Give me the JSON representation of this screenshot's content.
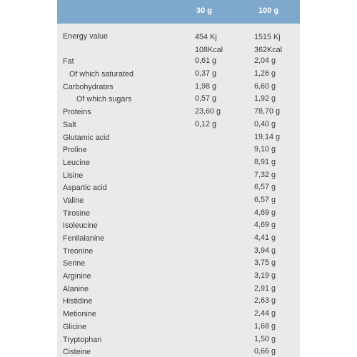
{
  "header": {
    "col1": "30 g",
    "col2": "100 g"
  },
  "rows": [
    {
      "name": "Energy value",
      "v1": "454 Kj\n108Kcal",
      "v2": "1515 Kj\n362Kcal"
    },
    {
      "name": "Fat",
      "v1": "0,61 g",
      "v2": "2,04 g"
    },
    {
      "name": "Of which saturated",
      "v1": "0,37 g",
      "v2": "1,26 g"
    },
    {
      "name": "Carbohydrates",
      "v1": "1,98 g",
      "v2": "6,60 g"
    },
    {
      "name": "Of which sugars",
      "v1": "0,57 g",
      "v2": "1,92 g"
    },
    {
      "name": "Proteins",
      "v1": "23,60 g",
      "v2": "78,70 g"
    },
    {
      "name": "Salt",
      "v1": "0,12 g",
      "v2": "0,40 g"
    },
    {
      "name": "Glutamic acid",
      "v1": "",
      "v2": "19,14 g"
    },
    {
      "name": "Proline",
      "v1": "",
      "v2": "9,10 g"
    },
    {
      "name": "Leucine",
      "v1": "",
      "v2": "8,91 g"
    },
    {
      "name": "Lisine",
      "v1": "",
      "v2": "7,32 g"
    },
    {
      "name": "Aspartic acid",
      "v1": "",
      "v2": "6,57 g"
    },
    {
      "name": "Valine",
      "v1": "",
      "v2": "6,57 g"
    },
    {
      "name": "Tirosine",
      "v1": "",
      "v2": "4,69 g"
    },
    {
      "name": "Isoleucine",
      "v1": "",
      "v2": "4,69 g"
    },
    {
      "name": "Fenilalanine",
      "v1": "",
      "v2": "4,41 g"
    },
    {
      "name": "Treonine",
      "v1": "",
      "v2": "3,94 g"
    },
    {
      "name": "Serine",
      "v1": "",
      "v2": "3,75 g"
    },
    {
      "name": "Arginine",
      "v1": "",
      "v2": "3,19 g"
    },
    {
      "name": "Alanine",
      "v1": "",
      "v2": "2,91 g"
    },
    {
      "name": "Histidine",
      "v1": "",
      "v2": "2,63 g"
    },
    {
      "name": "Metionine",
      "v1": "",
      "v2": "2,44 g"
    },
    {
      "name": "Glicine",
      "v1": "",
      "v2": "1,68 g"
    },
    {
      "name": "Tryptophan",
      "v1": "",
      "v2": "1,50 g"
    },
    {
      "name": "Cisteine",
      "v1": "",
      "v2": "0,66 g"
    }
  ]
}
